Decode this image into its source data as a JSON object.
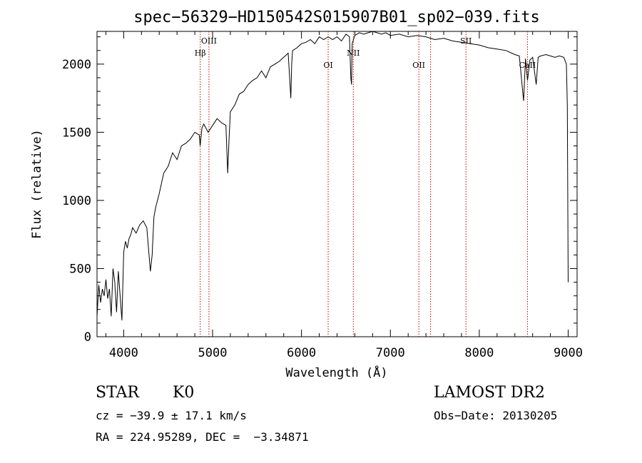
{
  "chart_data": {
    "type": "line",
    "title": "spec−56329−HD150542S015907B01_sp02−039.fits",
    "xlabel": "Wavelength (Å)",
    "ylabel": "Flux (relative)",
    "xlim": [
      3700,
      9100
    ],
    "ylim": [
      0,
      2240
    ],
    "xticks": [
      4000,
      5000,
      6000,
      7000,
      8000,
      9000
    ],
    "yticks": [
      0,
      500,
      1000,
      1500,
      2000
    ],
    "grid": false,
    "line_color": "#000000",
    "marker_color": "#cc0000",
    "series": [
      {
        "x": [
          3700,
          3720,
          3740,
          3760,
          3780,
          3800,
          3820,
          3840,
          3860,
          3880,
          3900,
          3920,
          3940,
          3960,
          3980,
          4000,
          4020,
          4040,
          4060,
          4080,
          4100,
          4140,
          4180,
          4220,
          4260,
          4300,
          4320,
          4340,
          4360,
          4400,
          4450,
          4500,
          4550,
          4600,
          4650,
          4700,
          4750,
          4800,
          4850,
          4860,
          4880,
          4900,
          4950,
          5000,
          5050,
          5100,
          5150,
          5170,
          5185,
          5200,
          5250,
          5300,
          5350,
          5400,
          5450,
          5500,
          5550,
          5600,
          5650,
          5700,
          5750,
          5800,
          5850,
          5880,
          5890,
          5900,
          5950,
          6000,
          6050,
          6100,
          6150,
          6200,
          6250,
          6300,
          6350,
          6400,
          6450,
          6500,
          6540,
          6555,
          6563,
          6570,
          6600,
          6650,
          6700,
          6750,
          6800,
          6850,
          6900,
          6950,
          7000,
          7100,
          7200,
          7300,
          7400,
          7500,
          7600,
          7700,
          7800,
          7900,
          8000,
          8100,
          8200,
          8300,
          8400,
          8450,
          8498,
          8520,
          8542,
          8570,
          8600,
          8640,
          8662,
          8690,
          8750,
          8800,
          8850,
          8900,
          8950,
          8980,
          8990,
          9000
        ],
        "y": [
          150,
          380,
          250,
          350,
          300,
          420,
          280,
          350,
          150,
          500,
          400,
          180,
          480,
          300,
          120,
          620,
          700,
          650,
          720,
          750,
          800,
          760,
          820,
          850,
          800,
          480,
          600,
          880,
          950,
          1050,
          1200,
          1250,
          1350,
          1300,
          1400,
          1420,
          1450,
          1500,
          1480,
          1400,
          1530,
          1560,
          1500,
          1550,
          1600,
          1570,
          1550,
          1200,
          1450,
          1650,
          1700,
          1780,
          1800,
          1850,
          1880,
          1900,
          1950,
          1900,
          1980,
          2000,
          2020,
          2050,
          2080,
          1750,
          2000,
          2100,
          2120,
          2150,
          2160,
          2180,
          2150,
          2200,
          2180,
          2200,
          2180,
          2200,
          2170,
          2220,
          2200,
          1900,
          1850,
          2150,
          2210,
          2230,
          2220,
          2230,
          2240,
          2230,
          2220,
          2230,
          2210,
          2220,
          2200,
          2210,
          2200,
          2180,
          2190,
          2170,
          2160,
          2150,
          2140,
          2120,
          2110,
          2100,
          2070,
          2060,
          1730,
          2040,
          1880,
          2030,
          2050,
          1850,
          2050,
          2060,
          2070,
          2060,
          2050,
          2060,
          2050,
          2000,
          1700,
          400
        ]
      }
    ],
    "annotations": [
      {
        "label": "Hβ",
        "x": 4861,
        "row": 1
      },
      {
        "label": "OIII",
        "x": 4959,
        "row": 0
      },
      {
        "label": "OI",
        "x": 6300,
        "row": 2
      },
      {
        "label": "NII",
        "x": 6583,
        "row": 1
      },
      {
        "label": "OII",
        "x": 7320,
        "row": 2
      },
      {
        "label": "SII",
        "x": 7850,
        "row": 0
      },
      {
        "label": "CaII",
        "x": 8542,
        "row": 2
      }
    ],
    "extra_markers": [
      7452
    ]
  },
  "info": {
    "object_type": "STAR",
    "subclass": "K0",
    "survey": "LAMOST DR2",
    "cz": "cz = −39.9 ± 17.1 km/s",
    "obs_date": "Obs−Date: 20130205",
    "coords": "RA = 224.95289, DEC =  −3.34871"
  }
}
